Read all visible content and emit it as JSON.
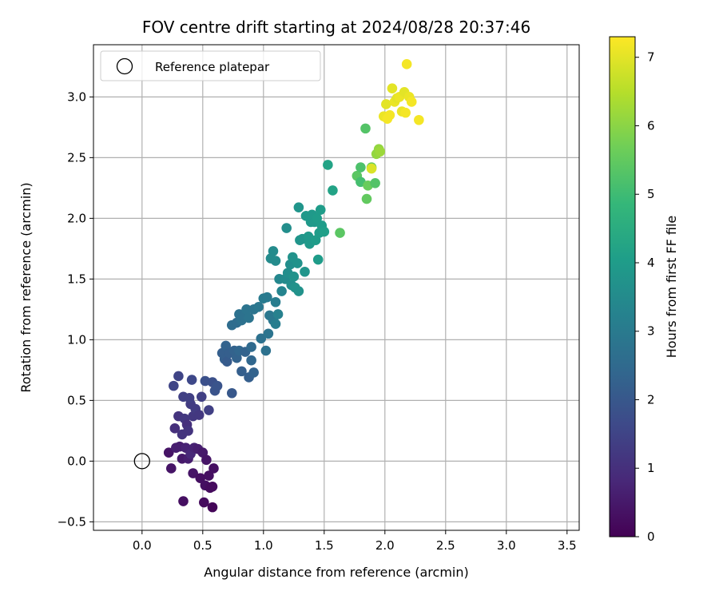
{
  "chart_data": {
    "type": "scatter",
    "title": "FOV centre drift starting at 2024/08/28 20:37:46",
    "xlabel": "Angular distance from reference (arcmin)",
    "ylabel": "Rotation from reference (arcmin)",
    "xlim": [
      -0.4,
      3.6
    ],
    "ylim": [
      -0.57,
      3.43
    ],
    "xticks": [
      0.0,
      0.5,
      1.0,
      1.5,
      2.0,
      2.5,
      3.0,
      3.5
    ],
    "xtick_labels": [
      "0.0",
      "0.5",
      "1.0",
      "1.5",
      "2.0",
      "2.5",
      "3.0",
      "3.5"
    ],
    "yticks": [
      -0.5,
      0.0,
      0.5,
      1.0,
      1.5,
      2.0,
      2.5,
      3.0
    ],
    "ytick_labels": [
      "−0.5",
      "0.0",
      "0.5",
      "1.0",
      "1.5",
      "2.0",
      "2.5",
      "3.0"
    ],
    "grid": true,
    "legend": {
      "position": "top-left",
      "entries": [
        "Reference platepar"
      ]
    },
    "reference_point": {
      "x": 0.0,
      "y": 0.0
    },
    "colorbar": {
      "label": "Hours from first FF file",
      "range": [
        0,
        7.3
      ],
      "ticks": [
        0,
        1,
        2,
        3,
        4,
        5,
        6,
        7
      ],
      "tick_labels": [
        "0",
        "1",
        "2",
        "3",
        "4",
        "5",
        "6",
        "7"
      ],
      "colormap": "viridis"
    },
    "points": [
      {
        "x": 0.22,
        "y": 0.07,
        "h": 0.4
      },
      {
        "x": 0.24,
        "y": -0.06,
        "h": 0.4
      },
      {
        "x": 0.28,
        "y": 0.11,
        "h": 0.6
      },
      {
        "x": 0.31,
        "y": 0.12,
        "h": 0.6
      },
      {
        "x": 0.33,
        "y": 0.02,
        "h": 0.5
      },
      {
        "x": 0.34,
        "y": -0.33,
        "h": 0.3
      },
      {
        "x": 0.36,
        "y": 0.11,
        "h": 0.7
      },
      {
        "x": 0.38,
        "y": 0.02,
        "h": 0.6
      },
      {
        "x": 0.4,
        "y": 0.06,
        "h": 0.8
      },
      {
        "x": 0.42,
        "y": -0.1,
        "h": 0.4
      },
      {
        "x": 0.43,
        "y": 0.11,
        "h": 0.7
      },
      {
        "x": 0.46,
        "y": 0.1,
        "h": 0.6
      },
      {
        "x": 0.48,
        "y": -0.14,
        "h": 0.3
      },
      {
        "x": 0.5,
        "y": 0.07,
        "h": 0.5
      },
      {
        "x": 0.52,
        "y": -0.2,
        "h": 0.3
      },
      {
        "x": 0.53,
        "y": 0.01,
        "h": 0.4
      },
      {
        "x": 0.55,
        "y": -0.12,
        "h": 0.3
      },
      {
        "x": 0.56,
        "y": -0.22,
        "h": 0.2
      },
      {
        "x": 0.58,
        "y": -0.21,
        "h": 0.2
      },
      {
        "x": 0.59,
        "y": -0.06,
        "h": 0.3
      },
      {
        "x": 0.51,
        "y": -0.34,
        "h": 0.2
      },
      {
        "x": 0.58,
        "y": -0.38,
        "h": 0.1
      },
      {
        "x": 0.27,
        "y": 0.27,
        "h": 1.0
      },
      {
        "x": 0.3,
        "y": 0.37,
        "h": 1.1
      },
      {
        "x": 0.33,
        "y": 0.22,
        "h": 1.1
      },
      {
        "x": 0.35,
        "y": 0.35,
        "h": 1.2
      },
      {
        "x": 0.37,
        "y": 0.3,
        "h": 1.0
      },
      {
        "x": 0.38,
        "y": 0.25,
        "h": 1.1
      },
      {
        "x": 0.4,
        "y": 0.47,
        "h": 1.3
      },
      {
        "x": 0.42,
        "y": 0.37,
        "h": 1.2
      },
      {
        "x": 0.44,
        "y": 0.43,
        "h": 1.3
      },
      {
        "x": 0.47,
        "y": 0.38,
        "h": 1.2
      },
      {
        "x": 0.34,
        "y": 0.53,
        "h": 1.4
      },
      {
        "x": 0.39,
        "y": 0.52,
        "h": 1.4
      },
      {
        "x": 0.26,
        "y": 0.62,
        "h": 1.5
      },
      {
        "x": 0.3,
        "y": 0.7,
        "h": 1.5
      },
      {
        "x": 0.41,
        "y": 0.67,
        "h": 1.6
      },
      {
        "x": 0.49,
        "y": 0.53,
        "h": 1.4
      },
      {
        "x": 0.55,
        "y": 0.42,
        "h": 1.4
      },
      {
        "x": 0.52,
        "y": 0.66,
        "h": 1.8
      },
      {
        "x": 0.58,
        "y": 0.65,
        "h": 1.8
      },
      {
        "x": 0.6,
        "y": 0.58,
        "h": 1.9
      },
      {
        "x": 0.62,
        "y": 0.62,
        "h": 1.9
      },
      {
        "x": 0.66,
        "y": 0.89,
        "h": 2.2
      },
      {
        "x": 0.68,
        "y": 0.84,
        "h": 2.2
      },
      {
        "x": 0.69,
        "y": 0.95,
        "h": 2.3
      },
      {
        "x": 0.7,
        "y": 0.82,
        "h": 2.1
      },
      {
        "x": 0.72,
        "y": 0.89,
        "h": 2.2
      },
      {
        "x": 0.74,
        "y": 0.56,
        "h": 2.0
      },
      {
        "x": 0.76,
        "y": 0.91,
        "h": 2.3
      },
      {
        "x": 0.78,
        "y": 0.85,
        "h": 2.3
      },
      {
        "x": 0.8,
        "y": 0.91,
        "h": 2.4
      },
      {
        "x": 0.82,
        "y": 0.74,
        "h": 2.2
      },
      {
        "x": 0.85,
        "y": 0.9,
        "h": 2.3
      },
      {
        "x": 0.88,
        "y": 0.69,
        "h": 2.2
      },
      {
        "x": 0.9,
        "y": 0.83,
        "h": 2.4
      },
      {
        "x": 0.92,
        "y": 0.73,
        "h": 2.3
      },
      {
        "x": 0.9,
        "y": 0.94,
        "h": 2.5
      },
      {
        "x": 0.74,
        "y": 1.12,
        "h": 2.6
      },
      {
        "x": 0.78,
        "y": 1.14,
        "h": 2.6
      },
      {
        "x": 0.8,
        "y": 1.21,
        "h": 2.7
      },
      {
        "x": 0.82,
        "y": 1.16,
        "h": 2.7
      },
      {
        "x": 0.84,
        "y": 1.19,
        "h": 2.7
      },
      {
        "x": 0.86,
        "y": 1.25,
        "h": 2.8
      },
      {
        "x": 0.88,
        "y": 1.18,
        "h": 2.8
      },
      {
        "x": 0.92,
        "y": 1.25,
        "h": 2.8
      },
      {
        "x": 0.96,
        "y": 1.27,
        "h": 2.9
      },
      {
        "x": 0.98,
        "y": 1.01,
        "h": 2.7
      },
      {
        "x": 1.0,
        "y": 1.34,
        "h": 3.0
      },
      {
        "x": 1.03,
        "y": 1.35,
        "h": 3.0
      },
      {
        "x": 1.04,
        "y": 1.05,
        "h": 2.8
      },
      {
        "x": 1.02,
        "y": 0.91,
        "h": 2.7
      },
      {
        "x": 1.05,
        "y": 1.2,
        "h": 2.9
      },
      {
        "x": 1.08,
        "y": 1.16,
        "h": 2.9
      },
      {
        "x": 1.1,
        "y": 1.13,
        "h": 3.1
      },
      {
        "x": 1.1,
        "y": 1.31,
        "h": 3.1
      },
      {
        "x": 1.12,
        "y": 1.21,
        "h": 3.2
      },
      {
        "x": 1.13,
        "y": 1.5,
        "h": 3.4
      },
      {
        "x": 1.15,
        "y": 1.4,
        "h": 3.3
      },
      {
        "x": 1.06,
        "y": 1.67,
        "h": 3.5
      },
      {
        "x": 1.08,
        "y": 1.73,
        "h": 3.5
      },
      {
        "x": 1.1,
        "y": 1.65,
        "h": 3.5
      },
      {
        "x": 1.18,
        "y": 1.5,
        "h": 3.5
      },
      {
        "x": 1.19,
        "y": 1.92,
        "h": 3.6
      },
      {
        "x": 1.2,
        "y": 1.55,
        "h": 3.6
      },
      {
        "x": 1.22,
        "y": 1.62,
        "h": 3.6
      },
      {
        "x": 1.23,
        "y": 1.45,
        "h": 3.6
      },
      {
        "x": 1.24,
        "y": 1.68,
        "h": 3.7
      },
      {
        "x": 1.25,
        "y": 1.52,
        "h": 3.7
      },
      {
        "x": 1.26,
        "y": 1.43,
        "h": 3.7
      },
      {
        "x": 1.28,
        "y": 1.63,
        "h": 3.7
      },
      {
        "x": 1.29,
        "y": 1.4,
        "h": 3.7
      },
      {
        "x": 1.3,
        "y": 1.82,
        "h": 3.8
      },
      {
        "x": 1.32,
        "y": 1.83,
        "h": 3.8
      },
      {
        "x": 1.29,
        "y": 2.09,
        "h": 3.8
      },
      {
        "x": 1.34,
        "y": 1.56,
        "h": 3.8
      },
      {
        "x": 1.35,
        "y": 2.02,
        "h": 3.9
      },
      {
        "x": 1.37,
        "y": 1.85,
        "h": 3.9
      },
      {
        "x": 1.38,
        "y": 1.79,
        "h": 3.9
      },
      {
        "x": 1.39,
        "y": 1.97,
        "h": 3.9
      },
      {
        "x": 1.4,
        "y": 2.03,
        "h": 3.9
      },
      {
        "x": 1.42,
        "y": 1.97,
        "h": 3.9
      },
      {
        "x": 1.43,
        "y": 1.82,
        "h": 4.0
      },
      {
        "x": 1.44,
        "y": 2.0,
        "h": 4.0
      },
      {
        "x": 1.45,
        "y": 1.66,
        "h": 4.0
      },
      {
        "x": 1.46,
        "y": 1.88,
        "h": 4.0
      },
      {
        "x": 1.47,
        "y": 2.07,
        "h": 4.0
      },
      {
        "x": 1.48,
        "y": 1.94,
        "h": 4.0
      },
      {
        "x": 1.5,
        "y": 1.89,
        "h": 4.1
      },
      {
        "x": 1.53,
        "y": 2.44,
        "h": 4.2
      },
      {
        "x": 1.57,
        "y": 2.23,
        "h": 4.2
      },
      {
        "x": 1.63,
        "y": 1.88,
        "h": 5.4
      },
      {
        "x": 1.77,
        "y": 2.35,
        "h": 5.4
      },
      {
        "x": 1.8,
        "y": 2.3,
        "h": 5.1
      },
      {
        "x": 1.8,
        "y": 2.42,
        "h": 5.2
      },
      {
        "x": 1.84,
        "y": 2.74,
        "h": 5.3
      },
      {
        "x": 1.85,
        "y": 2.16,
        "h": 5.5
      },
      {
        "x": 1.86,
        "y": 2.27,
        "h": 5.6
      },
      {
        "x": 1.89,
        "y": 2.42,
        "h": 5.6
      },
      {
        "x": 1.92,
        "y": 2.29,
        "h": 5.3
      },
      {
        "x": 1.93,
        "y": 2.53,
        "h": 6.1
      },
      {
        "x": 1.95,
        "y": 2.57,
        "h": 6.1
      },
      {
        "x": 1.96,
        "y": 2.55,
        "h": 6.2
      },
      {
        "x": 1.89,
        "y": 2.41,
        "h": 6.9
      },
      {
        "x": 1.99,
        "y": 2.84,
        "h": 7.1
      },
      {
        "x": 2.01,
        "y": 2.94,
        "h": 7.0
      },
      {
        "x": 2.02,
        "y": 2.82,
        "h": 7.2
      },
      {
        "x": 2.04,
        "y": 2.85,
        "h": 7.2
      },
      {
        "x": 2.06,
        "y": 3.07,
        "h": 7.0
      },
      {
        "x": 2.08,
        "y": 2.96,
        "h": 7.1
      },
      {
        "x": 2.1,
        "y": 2.99,
        "h": 7.0
      },
      {
        "x": 2.12,
        "y": 3.0,
        "h": 7.1
      },
      {
        "x": 2.14,
        "y": 2.88,
        "h": 7.1
      },
      {
        "x": 2.16,
        "y": 3.04,
        "h": 7.0
      },
      {
        "x": 2.17,
        "y": 2.87,
        "h": 7.2
      },
      {
        "x": 2.18,
        "y": 3.27,
        "h": 7.2
      },
      {
        "x": 2.2,
        "y": 3.0,
        "h": 7.1
      },
      {
        "x": 2.22,
        "y": 2.96,
        "h": 7.2
      },
      {
        "x": 2.28,
        "y": 2.81,
        "h": 7.2
      }
    ]
  }
}
